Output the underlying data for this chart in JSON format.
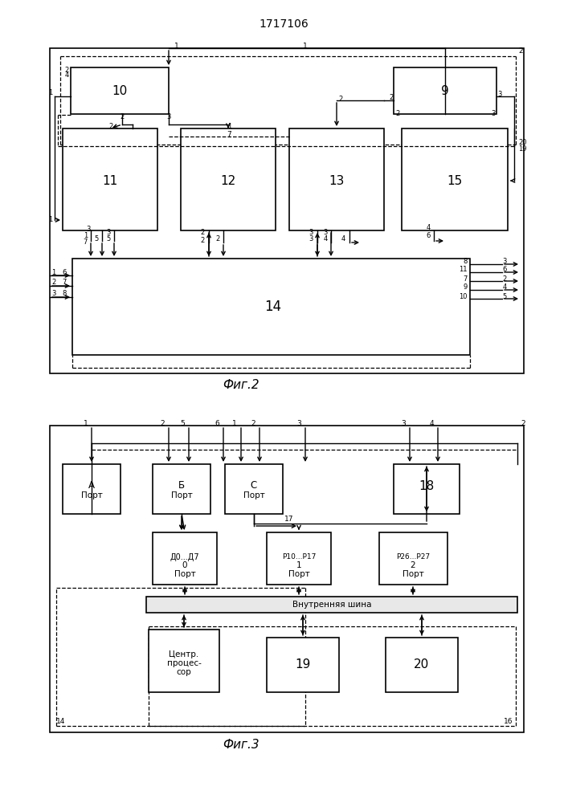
{
  "title": "1717106",
  "fig1_label": "Фиг.2",
  "fig2_label": "Фиг.3",
  "bg_color": "#ffffff"
}
